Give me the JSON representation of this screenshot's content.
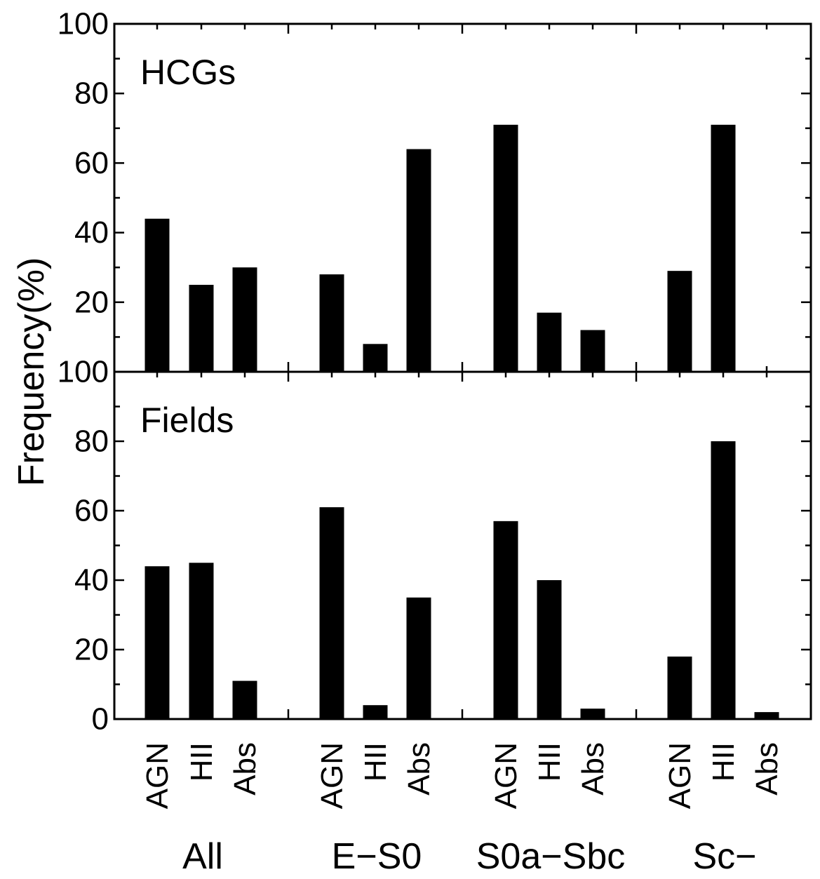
{
  "chart_data": {
    "type": "bar",
    "ylabel": "Frequency(%)",
    "ylim": [
      0,
      100
    ],
    "yticks": [
      "0",
      "20",
      "40",
      "60",
      "80",
      "100"
    ],
    "panels": [
      {
        "name": "HCGs",
        "values": [
          44,
          25,
          30,
          28,
          8,
          64,
          71,
          17,
          12,
          29,
          71,
          0
        ],
        "ytick_labels": [
          "",
          "20",
          "40",
          "60",
          "80",
          "100"
        ]
      },
      {
        "name": "Fields",
        "values": [
          44,
          45,
          11,
          61,
          4,
          35,
          57,
          40,
          3,
          18,
          80,
          2
        ],
        "ytick_labels": [
          "0",
          "20",
          "40",
          "60",
          "80",
          "100"
        ]
      }
    ],
    "categories": [
      "AGN",
      "HII",
      "Abs",
      "AGN",
      "HII",
      "Abs",
      "AGN",
      "HII",
      "Abs",
      "AGN",
      "HII",
      "Abs"
    ],
    "groups": [
      "All",
      "E−S0",
      "S0a−Sbc",
      "Sc−"
    ]
  }
}
